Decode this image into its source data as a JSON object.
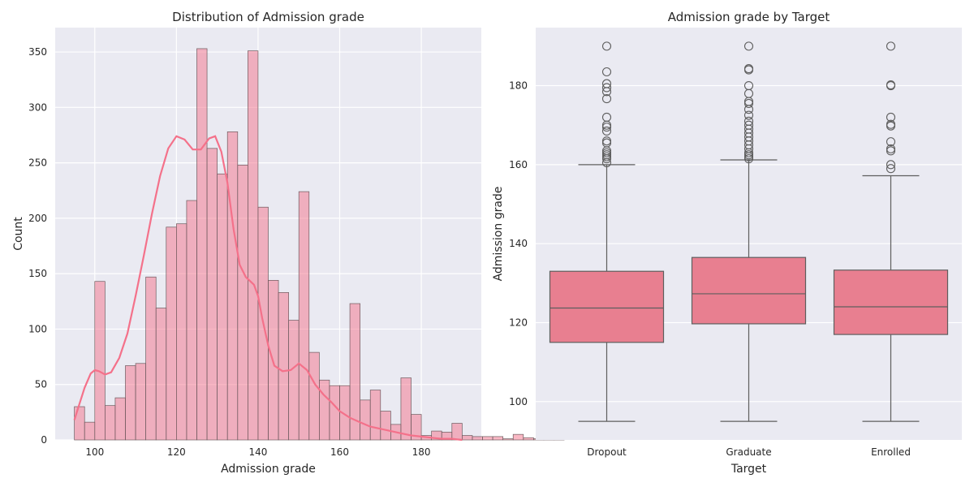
{
  "chart_data": [
    {
      "type": "bar",
      "subtype": "histogram_with_kde",
      "title": "Distribution of Admission grade",
      "xlabel": "Admission grade",
      "ylabel": "Count",
      "xlim": [
        90.3,
        194.7
      ],
      "ylim": [
        0,
        372
      ],
      "xticks": [
        "100",
        "120",
        "140",
        "160",
        "180"
      ],
      "yticks": [
        "0",
        "50",
        "100",
        "150",
        "200",
        "250",
        "300",
        "350"
      ],
      "grid": true,
      "bin_start": 95,
      "bin_width": 2.5,
      "values": [
        30,
        16,
        143,
        31,
        38,
        67,
        69,
        147,
        119,
        192,
        195,
        216,
        353,
        263,
        240,
        278,
        248,
        351,
        210,
        144,
        133,
        108,
        224,
        79,
        54,
        49,
        49,
        123,
        36,
        45,
        26,
        14,
        56,
        23,
        4,
        8,
        7,
        15,
        4,
        3,
        3,
        3,
        1,
        5,
        2,
        1,
        1,
        3
      ],
      "kde": {
        "x": [
          95,
          97.5,
          99,
          100,
          101,
          102.5,
          104,
          106,
          108,
          110,
          112,
          114,
          116,
          118,
          120,
          122,
          124,
          126,
          128,
          129.5,
          131,
          132.5,
          134,
          135.5,
          137,
          139,
          140,
          141,
          142.5,
          144,
          146,
          148,
          150,
          152,
          154,
          156,
          158,
          160,
          162.5,
          165,
          167.5,
          170,
          172.5,
          175,
          177.5,
          180,
          182.5,
          185,
          187.5,
          190
        ],
        "y": [
          18,
          47,
          60,
          63,
          62,
          59,
          61,
          74,
          96,
          130,
          166,
          204,
          238,
          263,
          274,
          271,
          262,
          262,
          272,
          274,
          260,
          232,
          190,
          158,
          147,
          140,
          130,
          110,
          85,
          67,
          62,
          63,
          69,
          63,
          50,
          41,
          34,
          26,
          20,
          16,
          12,
          10,
          8,
          6,
          4,
          3,
          2,
          1,
          1,
          0
        ]
      },
      "color": "#f4718a"
    },
    {
      "type": "boxplot",
      "title": "Admission grade by Target",
      "xlabel": "Target",
      "ylabel": "Admission grade",
      "ylim": [
        90.3,
        194.7
      ],
      "yticks": [
        "100",
        "120",
        "140",
        "160",
        "180"
      ],
      "categories": [
        "Dropout",
        "Graduate",
        "Enrolled"
      ],
      "boxes": [
        {
          "min": 95,
          "q1": 115,
          "median": 123.7,
          "q3": 133,
          "max": 160,
          "outliers": [
            160.5,
            161.5,
            162,
            162.5,
            163,
            163.5,
            165.5,
            166,
            168.5,
            169.5,
            170,
            172,
            176.7,
            178.5,
            179.5,
            180.5,
            183.5,
            190
          ]
        },
        {
          "min": 95,
          "q1": 119.7,
          "median": 127.3,
          "q3": 136.5,
          "max": 161.2,
          "outliers": [
            161.5,
            162,
            162.5,
            163,
            164,
            165,
            166,
            167,
            168,
            169,
            170,
            171,
            172.5,
            174,
            175.5,
            176,
            178,
            180,
            184,
            184.3,
            190
          ]
        },
        {
          "min": 95,
          "q1": 117,
          "median": 124,
          "q3": 133.3,
          "max": 157.2,
          "outliers": [
            159,
            160,
            163.5,
            164,
            165.8,
            169.8,
            170.2,
            172,
            180,
            180.2,
            190
          ]
        }
      ],
      "color": "#e87f90",
      "grid": true
    }
  ]
}
